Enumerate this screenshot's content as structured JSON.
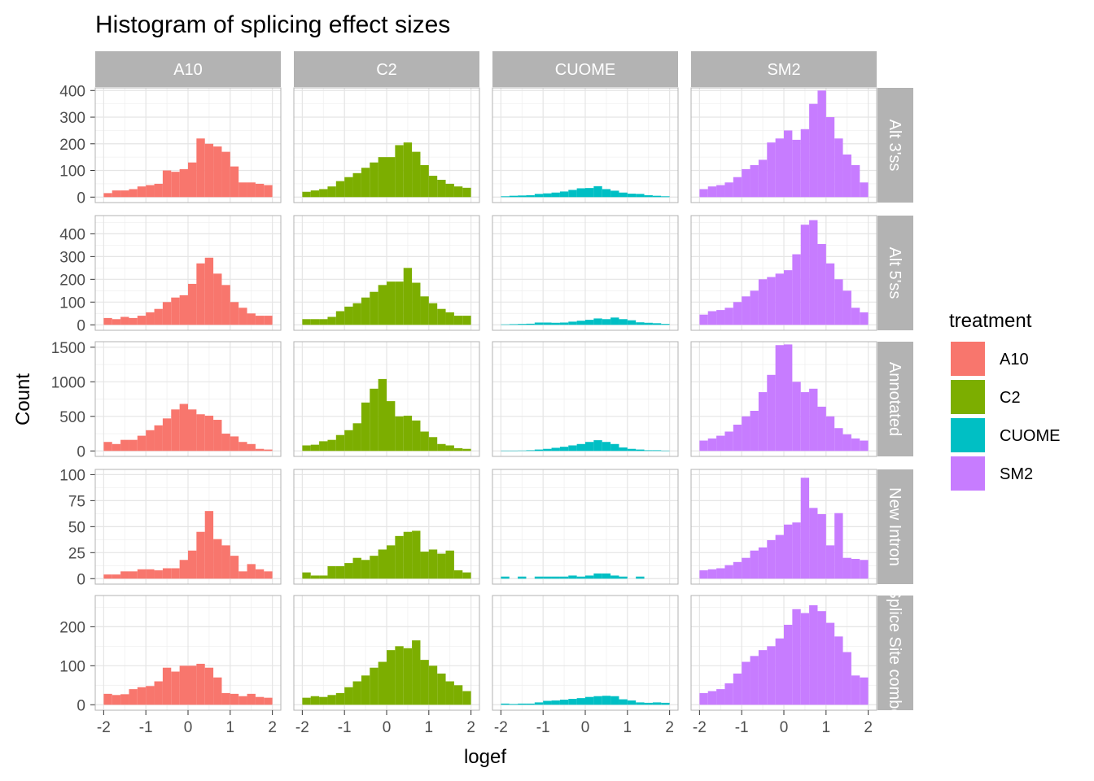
{
  "chart_data": {
    "type": "bar",
    "subtype": "faceted-histogram",
    "title": "Histogram of splicing effect sizes",
    "xlabel": "logef",
    "ylabel": "Count",
    "xlim": [
      -2,
      2
    ],
    "x_ticks": [
      "-2",
      "-1",
      "0",
      "1",
      "2"
    ],
    "bin_centers": [
      -1.9,
      -1.7,
      -1.5,
      -1.3,
      -1.1,
      -0.9,
      -0.7,
      -0.5,
      -0.3,
      -0.1,
      0.1,
      0.3,
      0.5,
      0.7,
      0.9,
      1.1,
      1.3,
      1.5,
      1.7,
      1.9
    ],
    "columns": [
      "A10",
      "C2",
      "CUOME",
      "SM2"
    ],
    "rows": [
      {
        "label": "Alt 3'ss",
        "ylim": [
          0,
          410
        ],
        "yticks": [
          0,
          100,
          200,
          300,
          400
        ],
        "ytick_labels": [
          "0",
          "100",
          "200",
          "300",
          "400"
        ]
      },
      {
        "label": "Alt 5'ss",
        "ylim": [
          0,
          480
        ],
        "yticks": [
          0,
          100,
          200,
          300,
          400
        ],
        "ytick_labels": [
          "0",
          "100",
          "200",
          "300",
          "400"
        ]
      },
      {
        "label": "Annotated",
        "ylim": [
          0,
          1580
        ],
        "yticks": [
          0,
          500,
          1000,
          1500
        ],
        "ytick_labels": [
          "0",
          "500",
          "1000",
          "1500"
        ]
      },
      {
        "label": "New Intron",
        "ylim": [
          0,
          105
        ],
        "yticks": [
          0,
          25,
          50,
          75,
          100
        ],
        "ytick_labels": [
          "0",
          "25",
          "50",
          "75",
          "100"
        ]
      },
      {
        "label": "Splice Site combo",
        "ylim": [
          0,
          280
        ],
        "yticks": [
          0,
          100,
          200
        ],
        "ytick_labels": [
          "0",
          "100",
          "200"
        ]
      }
    ],
    "legend": {
      "title": "treatment",
      "position": "right",
      "entries": [
        {
          "name": "A10",
          "color": "#F8766D"
        },
        {
          "name": "C2",
          "color": "#7CAE00"
        },
        {
          "name": "CUOME",
          "color": "#00BFC4"
        },
        {
          "name": "SM2",
          "color": "#C77CFF"
        }
      ]
    },
    "series": [
      {
        "row": 0,
        "column": "A10",
        "values": [
          15,
          25,
          25,
          30,
          40,
          45,
          50,
          100,
          95,
          105,
          130,
          220,
          200,
          190,
          170,
          115,
          55,
          55,
          50,
          45
        ]
      },
      {
        "row": 0,
        "column": "C2",
        "values": [
          20,
          25,
          30,
          40,
          60,
          75,
          90,
          110,
          130,
          150,
          150,
          195,
          205,
          170,
          120,
          80,
          65,
          50,
          40,
          35
        ]
      },
      {
        "row": 0,
        "column": "CUOME",
        "values": [
          3,
          5,
          6,
          7,
          12,
          14,
          17,
          21,
          27,
          33,
          34,
          41,
          30,
          24,
          17,
          13,
          12,
          7,
          5,
          3
        ]
      },
      {
        "row": 0,
        "column": "SM2",
        "values": [
          30,
          40,
          45,
          55,
          75,
          105,
          120,
          140,
          205,
          220,
          250,
          215,
          255,
          350,
          400,
          300,
          220,
          160,
          120,
          55
        ]
      },
      {
        "row": 1,
        "column": "A10",
        "values": [
          30,
          25,
          35,
          30,
          40,
          55,
          70,
          100,
          120,
          130,
          180,
          270,
          295,
          225,
          175,
          100,
          75,
          50,
          40,
          40
        ]
      },
      {
        "row": 1,
        "column": "C2",
        "values": [
          25,
          25,
          25,
          35,
          60,
          80,
          95,
          120,
          145,
          175,
          190,
          190,
          250,
          185,
          125,
          95,
          70,
          55,
          40,
          40
        ]
      },
      {
        "row": 1,
        "column": "CUOME",
        "values": [
          2,
          3,
          4,
          5,
          10,
          10,
          9,
          10,
          14,
          18,
          22,
          28,
          25,
          32,
          25,
          20,
          11,
          9,
          7,
          4
        ]
      },
      {
        "row": 1,
        "column": "SM2",
        "values": [
          45,
          60,
          65,
          75,
          100,
          125,
          150,
          200,
          210,
          225,
          240,
          310,
          440,
          460,
          355,
          270,
          200,
          150,
          75,
          55
        ]
      },
      {
        "row": 2,
        "column": "A10",
        "values": [
          130,
          100,
          160,
          160,
          220,
          300,
          370,
          470,
          600,
          680,
          600,
          530,
          510,
          450,
          250,
          210,
          130,
          100,
          30,
          20
        ]
      },
      {
        "row": 2,
        "column": "C2",
        "values": [
          80,
          90,
          140,
          160,
          230,
          300,
          400,
          700,
          900,
          1040,
          720,
          500,
          510,
          440,
          280,
          200,
          100,
          80,
          40,
          30
        ]
      },
      {
        "row": 2,
        "column": "CUOME",
        "values": [
          5,
          5,
          6,
          10,
          20,
          30,
          45,
          60,
          80,
          100,
          130,
          155,
          130,
          100,
          50,
          30,
          20,
          10,
          10,
          5
        ]
      },
      {
        "row": 2,
        "column": "SM2",
        "values": [
          150,
          180,
          220,
          280,
          380,
          500,
          580,
          850,
          1100,
          1530,
          1540,
          1000,
          850,
          900,
          640,
          500,
          330,
          240,
          180,
          150
        ]
      },
      {
        "row": 3,
        "column": "A10",
        "values": [
          4,
          4,
          7,
          7,
          9,
          9,
          8,
          10,
          10,
          18,
          27,
          45,
          65,
          38,
          32,
          22,
          7,
          14,
          9,
          7
        ]
      },
      {
        "row": 3,
        "column": "C2",
        "values": [
          6,
          3,
          3,
          12,
          12,
          15,
          20,
          18,
          22,
          28,
          32,
          41,
          45,
          46,
          26,
          28,
          24,
          27,
          8,
          6
        ]
      },
      {
        "row": 3,
        "column": "CUOME",
        "values": [
          2,
          0,
          2,
          0,
          2,
          2,
          2,
          2,
          3,
          2,
          3,
          5,
          5,
          3,
          2,
          0,
          2,
          0,
          0,
          0
        ]
      },
      {
        "row": 3,
        "column": "SM2",
        "values": [
          8,
          9,
          10,
          13,
          16,
          20,
          27,
          30,
          37,
          42,
          52,
          54,
          97,
          68,
          62,
          32,
          63,
          20,
          19,
          18
        ]
      },
      {
        "row": 4,
        "column": "A10",
        "values": [
          28,
          25,
          27,
          40,
          45,
          48,
          60,
          95,
          85,
          100,
          100,
          105,
          95,
          70,
          30,
          28,
          22,
          28,
          20,
          18
        ]
      },
      {
        "row": 4,
        "column": "C2",
        "values": [
          18,
          22,
          20,
          25,
          30,
          45,
          60,
          75,
          95,
          110,
          140,
          150,
          145,
          165,
          115,
          100,
          80,
          60,
          50,
          35
        ]
      },
      {
        "row": 4,
        "column": "CUOME",
        "values": [
          3,
          2,
          3,
          3,
          6,
          10,
          11,
          13,
          15,
          17,
          20,
          22,
          23,
          22,
          14,
          11,
          6,
          5,
          6,
          5
        ]
      },
      {
        "row": 4,
        "column": "SM2",
        "values": [
          30,
          35,
          40,
          55,
          80,
          110,
          125,
          140,
          150,
          170,
          205,
          245,
          235,
          255,
          240,
          210,
          175,
          135,
          75,
          70
        ]
      }
    ]
  }
}
